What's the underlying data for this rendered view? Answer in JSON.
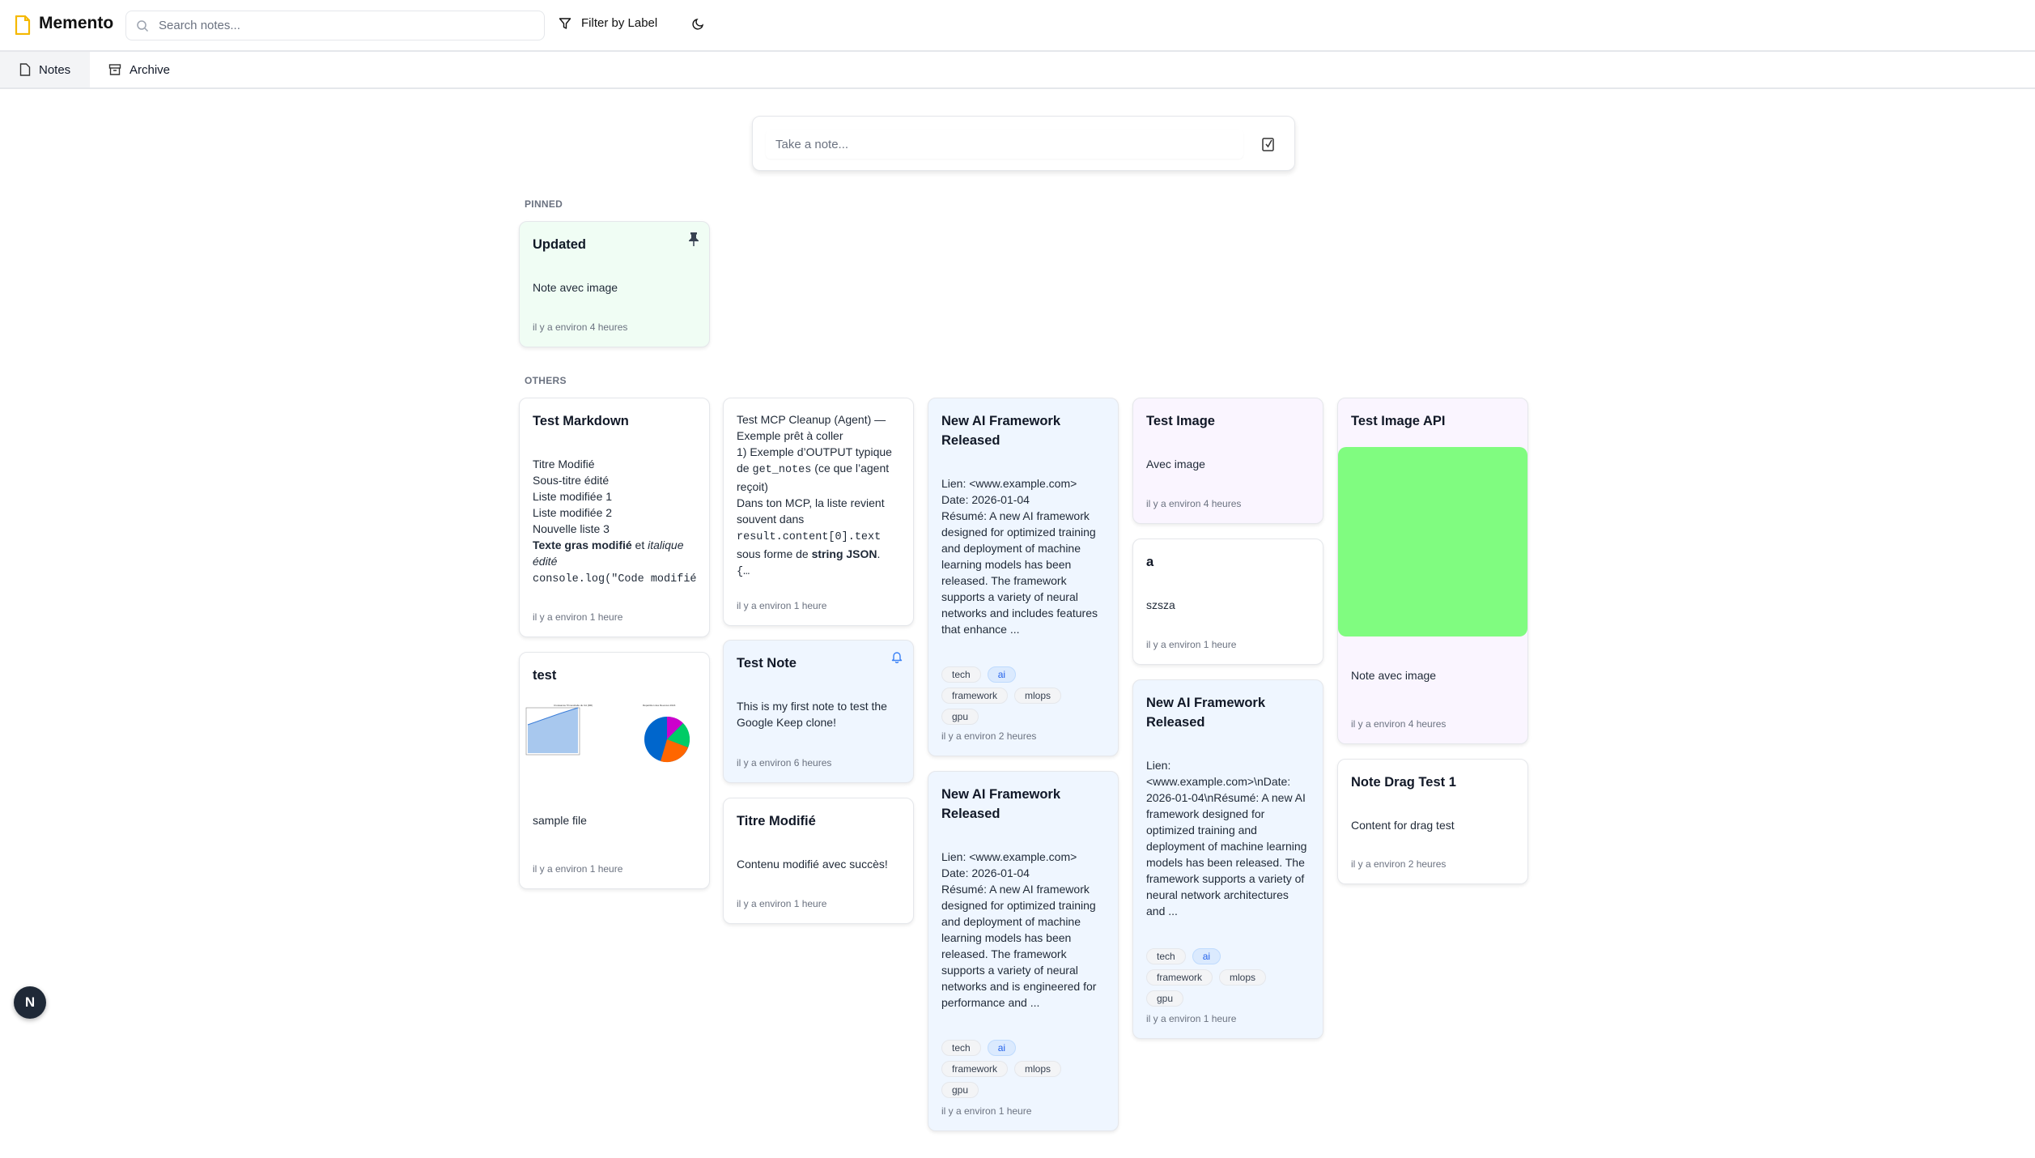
{
  "header": {
    "app_title": "Memento",
    "search_placeholder": "Search notes...",
    "filter_label": "Filter by Label"
  },
  "tabs": [
    {
      "label": "Notes",
      "icon": "file-icon",
      "active": true
    },
    {
      "label": "Archive",
      "icon": "archive-icon",
      "active": false
    }
  ],
  "composer": {
    "placeholder": "Take a note..."
  },
  "sections": {
    "pinned": "PINNED",
    "others": "OTHERS"
  },
  "colors": {
    "accent": "#f5b800",
    "green_note": "#f0fdf4",
    "blue_note": "#eff6ff",
    "purple_note": "#faf5ff",
    "image_green": "#80fc80"
  },
  "pinned": [
    {
      "title": "Updated",
      "body": [
        [
          {
            "t": "Note avec image"
          }
        ]
      ],
      "timestamp": "il y a environ 4 heures",
      "color": "#f0fdf4",
      "icon": "pin-icon"
    }
  ],
  "others": [
    {
      "col": 0,
      "title": "Test Markdown",
      "body": [
        [
          {
            "t": "Titre Modifié"
          }
        ],
        [
          {
            "t": "Sous-titre édité"
          }
        ],
        [
          {
            "t": "Liste modifiée 1"
          }
        ],
        [
          {
            "t": "Liste modifiée 2"
          }
        ],
        [
          {
            "t": "Nouvelle liste 3"
          }
        ],
        [
          {
            "t": "Texte gras modifié",
            "b": 1
          },
          {
            "t": " et "
          },
          {
            "t": "italique édité",
            "i": 1
          }
        ],
        [
          {
            "t": "console.log(\"Code modifié avec succès\")",
            "c": 1
          }
        ]
      ],
      "timestamp": "il y a environ 1 heure",
      "color": "#ffffff"
    },
    {
      "col": 0,
      "title": "test",
      "image": "chart-image",
      "body": [
        [
          {
            "t": "sample file"
          }
        ]
      ],
      "timestamp": "il y a environ 1 heure",
      "color": "#ffffff"
    },
    {
      "col": 1,
      "title": "",
      "body": [
        [
          {
            "t": "Test MCP Cleanup (Agent) — Exemple prêt à coller"
          }
        ],
        [
          {
            "t": "1) Exemple d’OUTPUT typique de "
          },
          {
            "t": "get_notes",
            "c": 1
          },
          {
            "t": " (ce que l’agent reçoit)"
          }
        ],
        [
          {
            "t": "Dans ton MCP, la liste revient souvent dans "
          },
          {
            "t": "result.content[0].text",
            "c": 1
          },
          {
            "t": " sous forme de "
          },
          {
            "t": "string JSON",
            "b": 1
          },
          {
            "t": "."
          }
        ],
        [
          {
            "t": "{…",
            "c": 1
          }
        ]
      ],
      "timestamp": "il y a environ 1 heure",
      "color": "#ffffff"
    },
    {
      "col": 1,
      "title": "Test Note",
      "body": [
        [
          {
            "t": "This is my first note to test the Google Keep clone!"
          }
        ]
      ],
      "timestamp": "il y a environ 6 heures",
      "color": "#eff6ff",
      "icon": "bell-icon"
    },
    {
      "col": 1,
      "title": "Titre Modifié",
      "body": [
        [
          {
            "t": "Contenu modifié avec succès!"
          }
        ]
      ],
      "timestamp": "il y a environ 1 heure",
      "color": "#ffffff"
    },
    {
      "col": 2,
      "title": "New AI Framework Released",
      "body": [
        [
          {
            "t": "Lien: <www.example.com>"
          }
        ],
        [
          {
            "t": "Date: 2026-01-04"
          }
        ],
        [
          {
            "t": "Résumé: A new AI framework designed for optimized training and deployment of machine learning models has been released. The framework supports a variety of neural networks and includes features that enhance ..."
          }
        ]
      ],
      "tags": [
        "tech",
        "ai",
        "framework",
        "mlops",
        "gpu"
      ],
      "timestamp": "il y a environ 2 heures",
      "color": "#eff6ff"
    },
    {
      "col": 2,
      "title": "New AI Framework Released",
      "body": [
        [
          {
            "t": "Lien: <www.example.com>"
          }
        ],
        [
          {
            "t": "Date: 2026-01-04"
          }
        ],
        [
          {
            "t": "Résumé: A new AI framework designed for optimized training and deployment of machine learning models has been released. The framework supports a variety of neural networks and is engineered for performance and ..."
          }
        ]
      ],
      "tags": [
        "tech",
        "ai",
        "framework",
        "mlops",
        "gpu"
      ],
      "timestamp": "il y a environ 1 heure",
      "color": "#eff6ff"
    },
    {
      "col": 3,
      "title": "Test Image",
      "body": [
        [
          {
            "t": "Avec image"
          }
        ]
      ],
      "timestamp": "il y a environ 4 heures",
      "color": "#faf5ff"
    },
    {
      "col": 3,
      "title": "a",
      "body": [
        [
          {
            "t": "szsza"
          }
        ]
      ],
      "timestamp": "il y a environ 1 heure",
      "color": "#ffffff"
    },
    {
      "col": 3,
      "title": "New AI Framework Released",
      "body": [
        [
          {
            "t": "Lien: <www.example.com>\\nDate: 2026-01-04\\nRésumé: A new AI framework designed for optimized training and deployment of machine learning models has been released. The framework supports a variety of neural network architectures and ..."
          }
        ]
      ],
      "tags": [
        "tech",
        "ai",
        "framework",
        "mlops",
        "gpu"
      ],
      "timestamp": "il y a environ 1 heure",
      "color": "#eff6ff"
    },
    {
      "col": 4,
      "title": "Test Image API",
      "image": "green-image",
      "body": [
        [
          {
            "t": "Note avec image"
          }
        ]
      ],
      "timestamp": "il y a environ 4 heures",
      "color": "#faf5ff"
    },
    {
      "col": 4,
      "title": "Note Drag Test 1",
      "body": [
        [
          {
            "t": "Content for drag test"
          }
        ]
      ],
      "timestamp": "il y a environ 2 heures",
      "color": "#ffffff"
    }
  ],
  "highlight_tag": "ai",
  "fab": {
    "label": "N"
  }
}
